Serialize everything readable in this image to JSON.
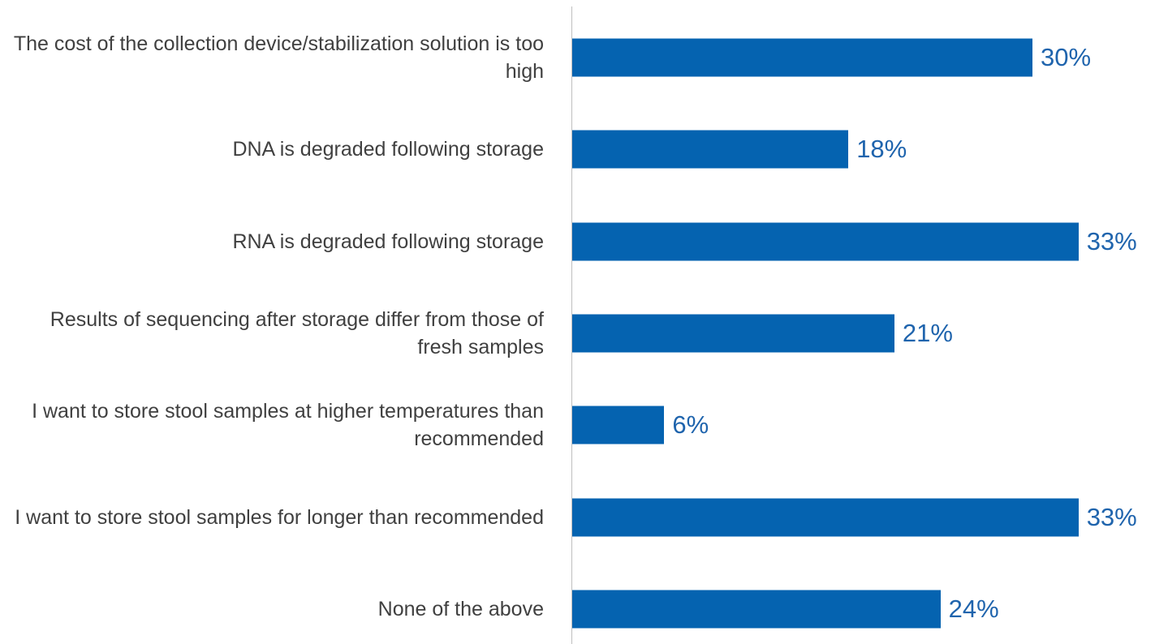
{
  "chart_data": {
    "type": "bar",
    "orientation": "horizontal",
    "categories": [
      "The cost of the collection device/stabilization solution is too high",
      "DNA is degraded following storage",
      "RNA is degraded following storage",
      "Results of sequencing after storage differ from those of fresh samples",
      "I want to store stool samples at higher temperatures than recommended",
      "I want to store stool samples for longer than recommended",
      "None of the above"
    ],
    "values": [
      30,
      18,
      33,
      21,
      6,
      33,
      24
    ],
    "value_labels": [
      "30%",
      "18%",
      "33%",
      "21%",
      "6%",
      "33%",
      "24%"
    ],
    "color": "#0563b0"
  }
}
